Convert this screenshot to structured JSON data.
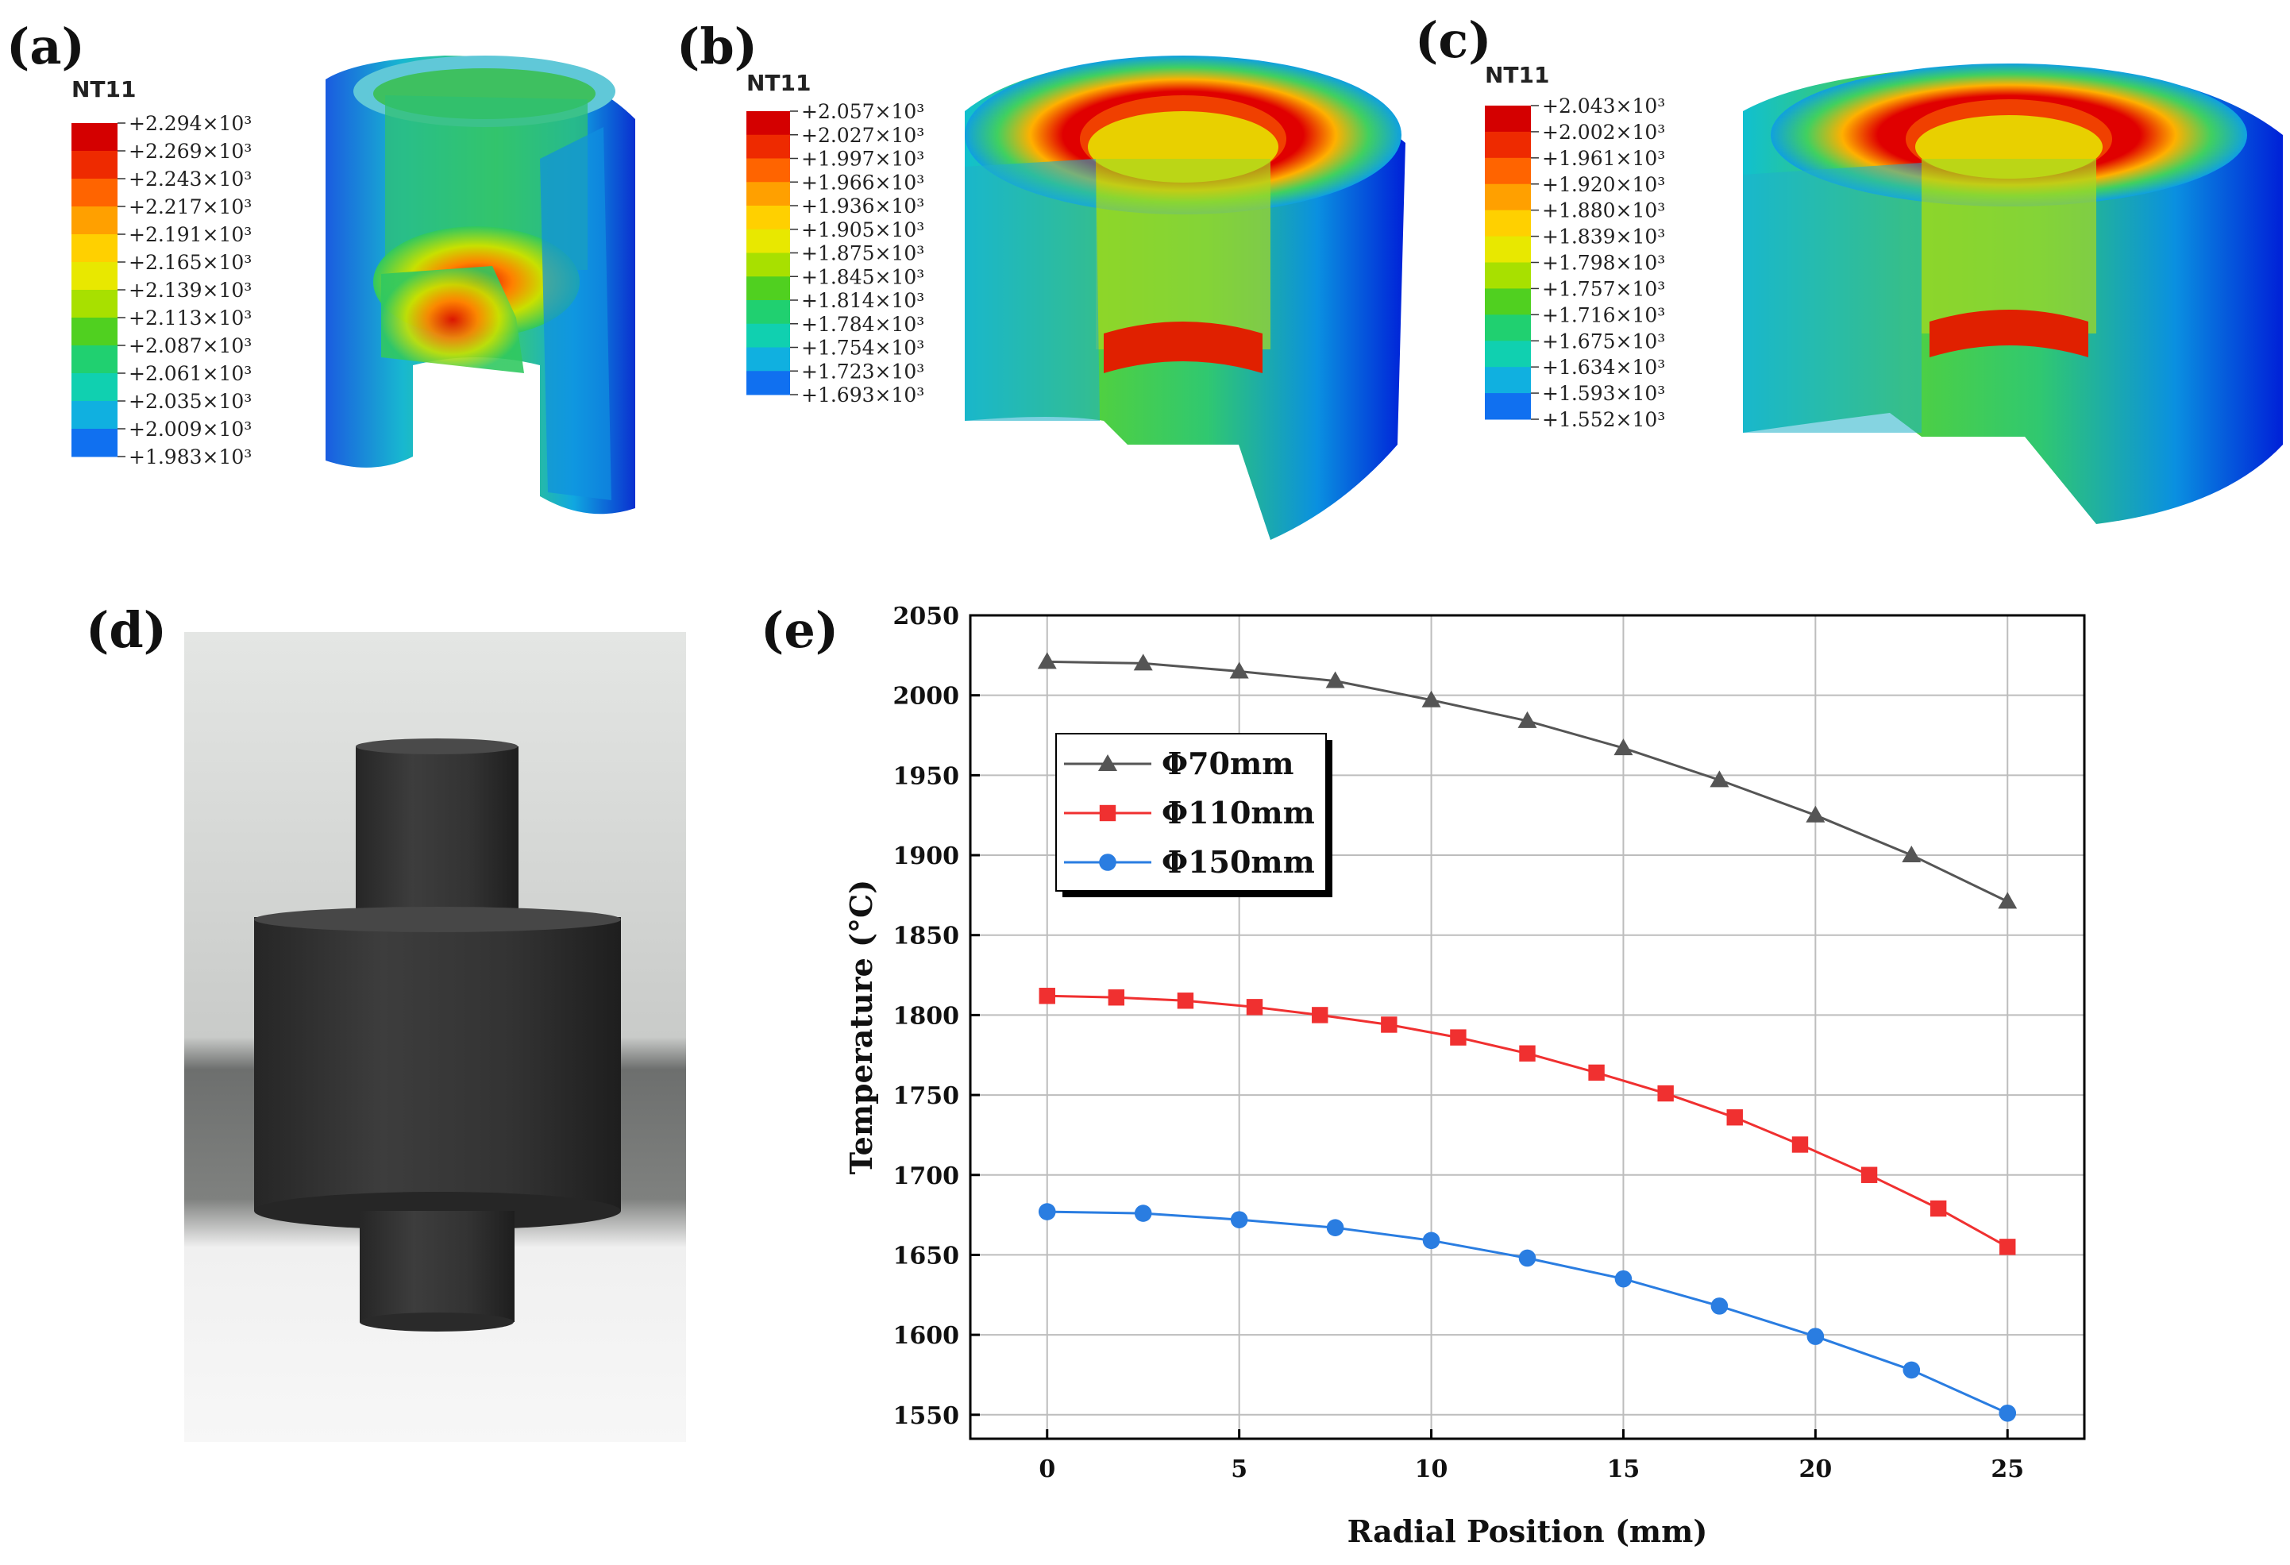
{
  "panels": {
    "a": {
      "label": "(a)",
      "nt": "NT11",
      "contour_values": [
        "+2.294×10³",
        "+2.269×10³",
        "+2.243×10³",
        "+2.217×10³",
        "+2.191×10³",
        "+2.165×10³",
        "+2.139×10³",
        "+2.113×10³",
        "+2.087×10³",
        "+2.061×10³",
        "+2.035×10³",
        "+2.009×10³",
        "+1.983×10³"
      ]
    },
    "b": {
      "label": "(b)",
      "nt": "NT11",
      "contour_values": [
        "+2.057×10³",
        "+2.027×10³",
        "+1.997×10³",
        "+1.966×10³",
        "+1.936×10³",
        "+1.905×10³",
        "+1.875×10³",
        "+1.845×10³",
        "+1.814×10³",
        "+1.784×10³",
        "+1.754×10³",
        "+1.723×10³",
        "+1.693×10³"
      ]
    },
    "c": {
      "label": "(c)",
      "nt": "NT11",
      "contour_values": [
        "+2.043×10³",
        "+2.002×10³",
        "+1.961×10³",
        "+1.920×10³",
        "+1.880×10³",
        "+1.839×10³",
        "+1.798×10³",
        "+1.757×10³",
        "+1.716×10³",
        "+1.675×10³",
        "+1.634×10³",
        "+1.593×10³",
        "+1.552×10³"
      ]
    },
    "d": {
      "label": "(d)"
    },
    "e": {
      "label": "(e)"
    }
  },
  "colors": {
    "contour_scale": [
      "#d40000",
      "#ee2a00",
      "#ff6400",
      "#ffa000",
      "#ffd000",
      "#e8e800",
      "#a8e000",
      "#50d020",
      "#20d070",
      "#10d0b0",
      "#10b0e0",
      "#1070f0",
      "#0020e0"
    ],
    "series_70": "#555555",
    "series_110": "#f03030",
    "series_150": "#2a7de1"
  },
  "chart_data": {
    "type": "line",
    "xlabel": "Radial Position (mm)",
    "ylabel": "Temperature (°C)",
    "xlim": [
      -2,
      27
    ],
    "ylim": [
      1535,
      2050
    ],
    "xticks": [
      0,
      5,
      10,
      15,
      20,
      25
    ],
    "yticks": [
      1550,
      1600,
      1650,
      1700,
      1750,
      1800,
      1850,
      1900,
      1950,
      2000,
      2050
    ],
    "grid": true,
    "legend_position": "upper-left",
    "series": [
      {
        "name": "Φ70mm",
        "marker": "triangle",
        "color": "#555555",
        "x": [
          0,
          2.5,
          5,
          7.5,
          10,
          12.5,
          15,
          17.5,
          20,
          22.5,
          25
        ],
        "y": [
          2021,
          2020,
          2015,
          2009,
          1997,
          1984,
          1967,
          1947,
          1925,
          1900,
          1871
        ]
      },
      {
        "name": "Φ110mm",
        "marker": "square",
        "color": "#f03030",
        "x": [
          0,
          1.8,
          3.6,
          5.4,
          7.1,
          8.9,
          10.7,
          12.5,
          14.3,
          16.1,
          17.9,
          19.6,
          21.4,
          23.2,
          25
        ],
        "y": [
          1812,
          1811,
          1809,
          1805,
          1800,
          1794,
          1786,
          1776,
          1764,
          1751,
          1736,
          1719,
          1700,
          1679,
          1655
        ]
      },
      {
        "name": "Φ150mm",
        "marker": "circle",
        "color": "#2a7de1",
        "x": [
          0,
          2.5,
          5,
          7.5,
          10,
          12.5,
          15,
          17.5,
          20,
          22.5,
          25
        ],
        "y": [
          1677,
          1676,
          1672,
          1667,
          1659,
          1648,
          1635,
          1618,
          1599,
          1578,
          1551
        ]
      }
    ]
  }
}
